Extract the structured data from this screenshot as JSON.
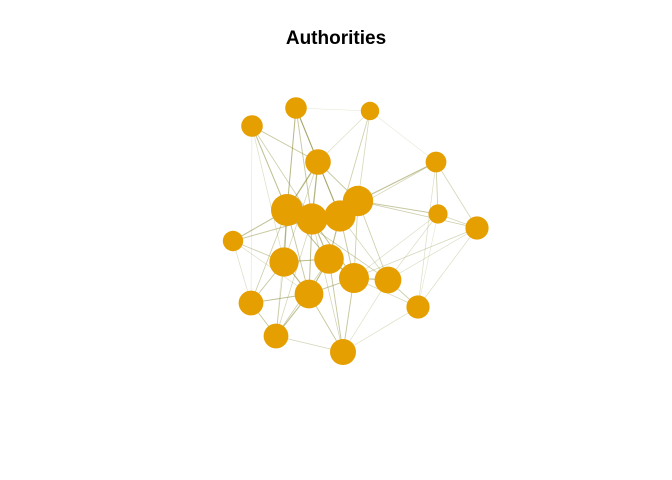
{
  "title": "Authorities",
  "colors": {
    "node": "#E69F00",
    "edge": "#8B8B3A"
  },
  "nodes": [
    {
      "id": "n1",
      "authority": 0.35
    },
    {
      "id": "n2",
      "authority": 0.35
    },
    {
      "id": "n3",
      "authority": 0.15
    },
    {
      "id": "n4",
      "authority": 0.6
    },
    {
      "id": "n5",
      "authority": 0.28
    },
    {
      "id": "n6",
      "authority": 1.0
    },
    {
      "id": "n7",
      "authority": 0.95
    },
    {
      "id": "n8",
      "authority": 0.95
    },
    {
      "id": "n9",
      "authority": 0.9
    },
    {
      "id": "n10",
      "authority": 0.3
    },
    {
      "id": "n11",
      "authority": 0.2
    },
    {
      "id": "n12",
      "authority": 0.45
    },
    {
      "id": "n13",
      "authority": 0.82
    },
    {
      "id": "n14",
      "authority": 0.85
    },
    {
      "id": "n15",
      "authority": 0.88
    },
    {
      "id": "n16",
      "authority": 0.68
    },
    {
      "id": "n17",
      "authority": 0.55
    },
    {
      "id": "n18",
      "authority": 0.8
    },
    {
      "id": "n19",
      "authority": 0.45
    },
    {
      "id": "n20",
      "authority": 0.55
    },
    {
      "id": "n21",
      "authority": 0.62
    }
  ],
  "edges": [
    [
      "n1",
      "n4",
      0.6
    ],
    [
      "n1",
      "n6",
      0.7
    ],
    [
      "n1",
      "n7",
      0.5
    ],
    [
      "n1",
      "n13",
      0.3
    ],
    [
      "n2",
      "n4",
      0.8
    ],
    [
      "n2",
      "n6",
      0.7
    ],
    [
      "n2",
      "n7",
      0.6
    ],
    [
      "n2",
      "n8",
      0.5
    ],
    [
      "n2",
      "n3",
      0.2
    ],
    [
      "n3",
      "n8",
      0.5
    ],
    [
      "n3",
      "n9",
      0.4
    ],
    [
      "n3",
      "n4",
      0.3
    ],
    [
      "n3",
      "n10",
      0.15
    ],
    [
      "n4",
      "n6",
      0.9
    ],
    [
      "n4",
      "n7",
      0.9
    ],
    [
      "n4",
      "n8",
      0.8
    ],
    [
      "n4",
      "n9",
      0.6
    ],
    [
      "n4",
      "n13",
      0.4
    ],
    [
      "n5",
      "n6",
      0.7
    ],
    [
      "n5",
      "n7",
      0.6
    ],
    [
      "n5",
      "n13",
      0.5
    ],
    [
      "n5",
      "n17",
      0.3
    ],
    [
      "n5",
      "n18",
      0.3
    ],
    [
      "n6",
      "n7",
      1.0
    ],
    [
      "n6",
      "n13",
      0.9
    ],
    [
      "n6",
      "n14",
      0.7
    ],
    [
      "n6",
      "n16",
      0.5
    ],
    [
      "n6",
      "n18",
      0.6
    ],
    [
      "n6",
      "n17",
      0.5
    ],
    [
      "n7",
      "n8",
      1.0
    ],
    [
      "n7",
      "n14",
      0.8
    ],
    [
      "n7",
      "n15",
      0.7
    ],
    [
      "n7",
      "n18",
      0.7
    ],
    [
      "n7",
      "n20",
      0.4
    ],
    [
      "n7",
      "n21",
      0.4
    ],
    [
      "n8",
      "n9",
      0.9
    ],
    [
      "n8",
      "n14",
      0.8
    ],
    [
      "n8",
      "n15",
      0.6
    ],
    [
      "n8",
      "n16",
      0.4
    ],
    [
      "n9",
      "n10",
      0.7
    ],
    [
      "n9",
      "n12",
      0.5
    ],
    [
      "n9",
      "n11",
      0.6
    ],
    [
      "n9",
      "n15",
      0.5
    ],
    [
      "n9",
      "n16",
      0.5
    ],
    [
      "n10",
      "n11",
      0.5
    ],
    [
      "n10",
      "n12",
      0.4
    ],
    [
      "n10",
      "n19",
      0.3
    ],
    [
      "n10",
      "n8",
      0.4
    ],
    [
      "n11",
      "n12",
      0.4
    ],
    [
      "n11",
      "n16",
      0.3
    ],
    [
      "n11",
      "n19",
      0.2
    ],
    [
      "n11",
      "n15",
      0.3
    ],
    [
      "n12",
      "n15",
      0.4
    ],
    [
      "n12",
      "n16",
      0.3
    ],
    [
      "n12",
      "n19",
      0.3
    ],
    [
      "n13",
      "n14",
      0.8
    ],
    [
      "n13",
      "n18",
      0.8
    ],
    [
      "n13",
      "n17",
      0.6
    ],
    [
      "n13",
      "n20",
      0.5
    ],
    [
      "n14",
      "n15",
      0.9
    ],
    [
      "n14",
      "n18",
      0.8
    ],
    [
      "n14",
      "n21",
      0.6
    ],
    [
      "n14",
      "n20",
      0.5
    ],
    [
      "n15",
      "n16",
      0.8
    ],
    [
      "n15",
      "n21",
      0.6
    ],
    [
      "n15",
      "n19",
      0.4
    ],
    [
      "n16",
      "n19",
      0.5
    ],
    [
      "n16",
      "n21",
      0.3
    ],
    [
      "n17",
      "n18",
      0.7
    ],
    [
      "n17",
      "n20",
      0.6
    ],
    [
      "n18",
      "n20",
      0.7
    ],
    [
      "n18",
      "n21",
      0.6
    ],
    [
      "n18",
      "n15",
      0.6
    ],
    [
      "n20",
      "n21",
      0.4
    ],
    [
      "n19",
      "n21",
      0.3
    ],
    [
      "n2",
      "n20",
      0.15
    ],
    [
      "n1",
      "n17",
      0.2
    ]
  ]
}
